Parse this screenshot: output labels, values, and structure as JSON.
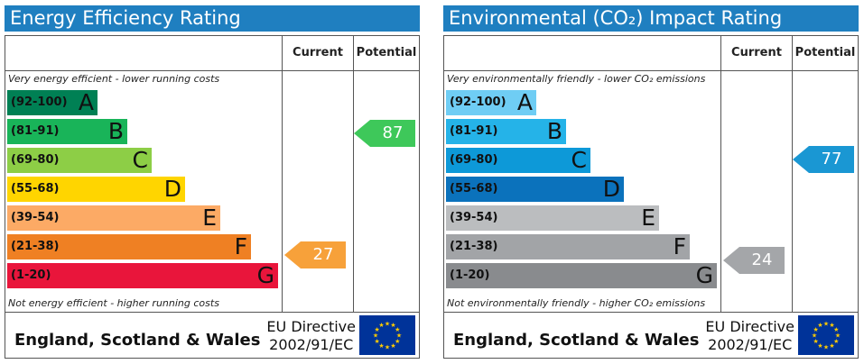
{
  "energy": {
    "title": "Energy Efficiency Rating",
    "current_label": "Current",
    "potential_label": "Potential",
    "top_note": "Very energy efficient - lower running costs",
    "bottom_note": "Not energy efficient - higher running costs",
    "bands": [
      {
        "range": "(92-100)",
        "letter": "A",
        "color": "#008054"
      },
      {
        "range": "(81-91)",
        "letter": "B",
        "color": "#19b459"
      },
      {
        "range": "(69-80)",
        "letter": "C",
        "color": "#8dce46"
      },
      {
        "range": "(55-68)",
        "letter": "D",
        "color": "#ffd500"
      },
      {
        "range": "(39-54)",
        "letter": "E",
        "color": "#fcaa65"
      },
      {
        "range": "(21-38)",
        "letter": "F",
        "color": "#ef8023"
      },
      {
        "range": "(1-20)",
        "letter": "G",
        "color": "#e9153b"
      }
    ],
    "current": {
      "value": "27",
      "color": "#f7a13a"
    },
    "potential": {
      "value": "87",
      "color": "#3ec85a"
    },
    "footer_region": "England, Scotland & Wales",
    "directive_line1": "EU Directive",
    "directive_line2": "2002/91/EC"
  },
  "environment": {
    "title": "Environmental (CO₂) Impact Rating",
    "current_label": "Current",
    "potential_label": "Potential",
    "top_note": "Very environmentally friendly - lower CO₂ emissions",
    "bottom_note": "Not environmentally friendly - higher CO₂ emissions",
    "bands": [
      {
        "range": "(92-100)",
        "letter": "A",
        "color": "#6fcdf4"
      },
      {
        "range": "(81-91)",
        "letter": "B",
        "color": "#25b3e8"
      },
      {
        "range": "(69-80)",
        "letter": "C",
        "color": "#0d99d8"
      },
      {
        "range": "(55-68)",
        "letter": "D",
        "color": "#0b72bc"
      },
      {
        "range": "(39-54)",
        "letter": "E",
        "color": "#bbbdbf"
      },
      {
        "range": "(21-38)",
        "letter": "F",
        "color": "#a2a4a7"
      },
      {
        "range": "(1-20)",
        "letter": "G",
        "color": "#898b8e"
      }
    ],
    "current": {
      "value": "24",
      "color": "#a4a6a9"
    },
    "potential": {
      "value": "77",
      "color": "#1a97d3"
    },
    "footer_region": "England, Scotland & Wales",
    "directive_line1": "EU Directive",
    "directive_line2": "2002/91/EC"
  }
}
